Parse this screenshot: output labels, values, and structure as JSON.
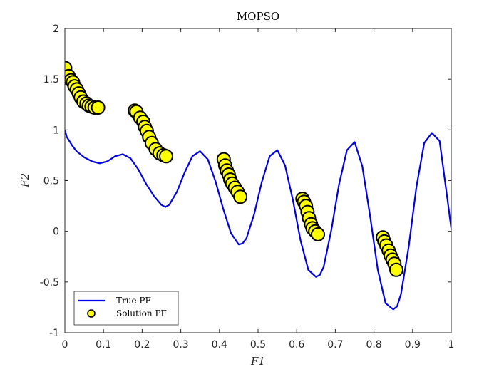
{
  "chart_data": {
    "type": "scatter",
    "title": "MOPSO",
    "xlabel": "F1",
    "ylabel": "F2",
    "xlim": [
      0,
      1
    ],
    "ylim": [
      -1,
      2
    ],
    "xticks": [
      "0",
      "0.1",
      "0.2",
      "0.3",
      "0.4",
      "0.5",
      "0.6",
      "0.7",
      "0.8",
      "0.9",
      "1"
    ],
    "yticks": [
      "-1",
      "-0.5",
      "0",
      "0.5",
      "1",
      "1.5",
      "2"
    ],
    "grid": false,
    "legend_position": "bottom-left",
    "colors": {
      "line": "#0000e6",
      "marker_fill": "#ffff00",
      "marker_edge": "#000000"
    },
    "series": [
      {
        "name": "True PF",
        "kind": "line",
        "x": [
          0.0,
          0.005,
          0.01,
          0.02,
          0.03,
          0.05,
          0.07,
          0.09,
          0.11,
          0.13,
          0.15,
          0.17,
          0.19,
          0.21,
          0.23,
          0.25,
          0.26,
          0.27,
          0.29,
          0.31,
          0.33,
          0.35,
          0.37,
          0.39,
          0.41,
          0.43,
          0.45,
          0.46,
          0.47,
          0.49,
          0.51,
          0.53,
          0.55,
          0.57,
          0.59,
          0.61,
          0.63,
          0.65,
          0.66,
          0.67,
          0.69,
          0.71,
          0.73,
          0.75,
          0.77,
          0.79,
          0.81,
          0.83,
          0.85,
          0.86,
          0.87,
          0.89,
          0.91,
          0.93,
          0.95,
          0.97,
          0.99,
          1.0
        ],
        "y": [
          1.0,
          0.93,
          0.9,
          0.84,
          0.79,
          0.73,
          0.69,
          0.67,
          0.69,
          0.74,
          0.76,
          0.72,
          0.61,
          0.47,
          0.35,
          0.26,
          0.24,
          0.26,
          0.39,
          0.58,
          0.74,
          0.79,
          0.71,
          0.49,
          0.22,
          -0.02,
          -0.13,
          -0.12,
          -0.07,
          0.17,
          0.49,
          0.74,
          0.8,
          0.65,
          0.31,
          -0.09,
          -0.38,
          -0.45,
          -0.43,
          -0.35,
          0.02,
          0.47,
          0.8,
          0.88,
          0.64,
          0.15,
          -0.38,
          -0.71,
          -0.77,
          -0.74,
          -0.62,
          -0.15,
          0.44,
          0.87,
          0.97,
          0.89,
          0.32,
          0.03
        ]
      },
      {
        "name": "Solution PF",
        "kind": "scatter",
        "x": [
          0.001,
          0.01,
          0.016,
          0.021,
          0.025,
          0.031,
          0.036,
          0.041,
          0.048,
          0.056,
          0.062,
          0.069,
          0.077,
          0.086,
          0.181,
          0.185,
          0.195,
          0.203,
          0.207,
          0.212,
          0.218,
          0.225,
          0.235,
          0.245,
          0.255,
          0.262,
          0.411,
          0.415,
          0.419,
          0.424,
          0.428,
          0.433,
          0.44,
          0.447,
          0.454,
          0.615,
          0.619,
          0.624,
          0.628,
          0.632,
          0.637,
          0.641,
          0.648,
          0.655,
          0.823,
          0.827,
          0.832,
          0.838,
          0.843,
          0.848,
          0.853,
          0.858
        ],
        "y": [
          1.61,
          1.53,
          1.49,
          1.47,
          1.43,
          1.4,
          1.36,
          1.32,
          1.28,
          1.26,
          1.24,
          1.23,
          1.22,
          1.22,
          1.19,
          1.18,
          1.12,
          1.08,
          1.03,
          0.99,
          0.93,
          0.87,
          0.81,
          0.77,
          0.75,
          0.74,
          0.71,
          0.65,
          0.6,
          0.56,
          0.51,
          0.47,
          0.43,
          0.39,
          0.34,
          0.32,
          0.29,
          0.25,
          0.19,
          0.13,
          0.07,
          0.03,
          0.0,
          -0.03,
          -0.06,
          -0.1,
          -0.14,
          -0.19,
          -0.24,
          -0.28,
          -0.32,
          -0.38
        ]
      }
    ]
  }
}
